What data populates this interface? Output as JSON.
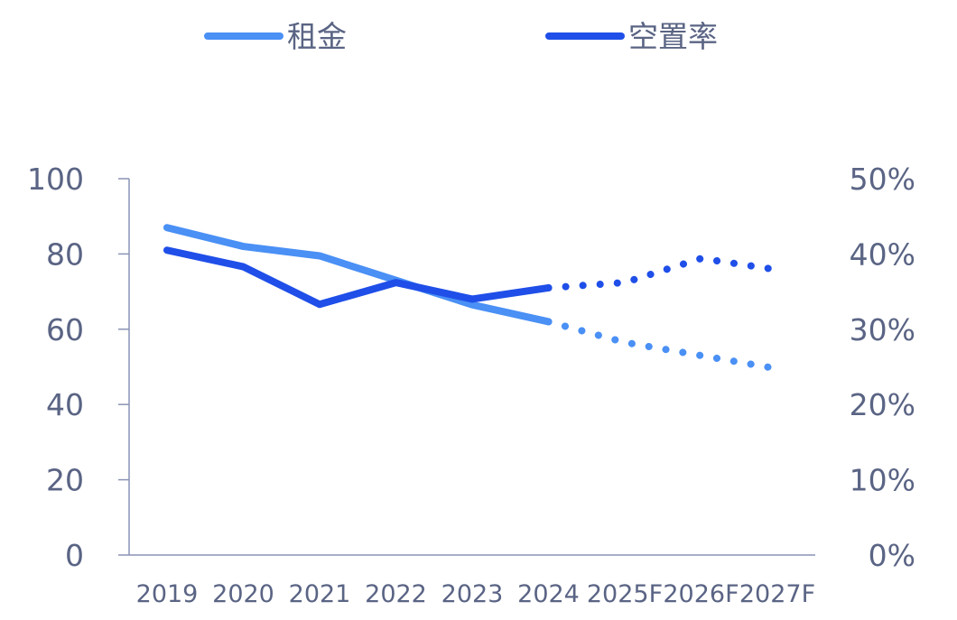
{
  "chart_data": {
    "type": "line",
    "title": "",
    "categories": [
      "2019",
      "2020",
      "2021",
      "2022",
      "2023",
      "2024",
      "2025F",
      "2026F",
      "2027F"
    ],
    "forecast_from_index": 5,
    "y_left": {
      "ylim": [
        0,
        100
      ],
      "ticks": [
        0,
        20,
        40,
        60,
        80,
        100
      ],
      "tick_labels": [
        "0",
        "20",
        "40",
        "60",
        "80",
        "100"
      ]
    },
    "y_right": {
      "ylim": [
        0,
        50
      ],
      "ticks": [
        0,
        10,
        20,
        30,
        40,
        50
      ],
      "tick_labels": [
        "0%",
        "10%",
        "20%",
        "30%",
        "40%",
        "50%"
      ],
      "unit": "%"
    },
    "series": [
      {
        "name": "租金",
        "axis": "left",
        "color": "#4a90f5",
        "values": [
          87,
          82,
          79.5,
          73,
          66.5,
          62,
          56.5,
          53,
          49.5
        ]
      },
      {
        "name": "空置率",
        "axis": "right",
        "color": "#1f4fe8",
        "values": [
          40.5,
          38.3,
          33.3,
          36.2,
          34,
          35.5,
          36.2,
          39.4,
          37.9
        ]
      }
    ],
    "legend_position": "top",
    "grid": false
  }
}
